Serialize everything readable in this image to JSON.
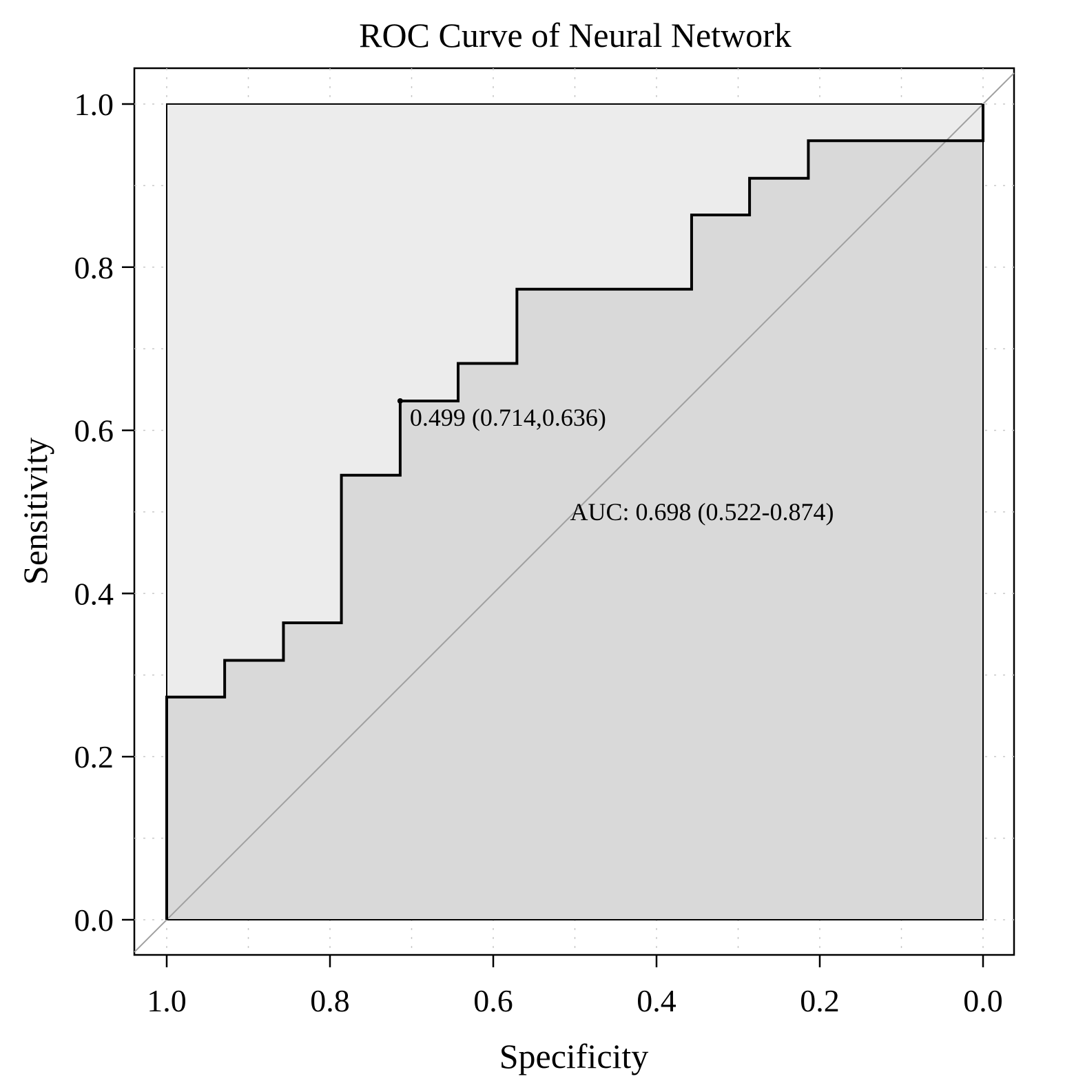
{
  "chart_data": {
    "type": "line",
    "title": "ROC Curve of Neural Network",
    "xlabel": "Specificity",
    "ylabel": "Sensitivity",
    "xlim": [
      1.0,
      0.0
    ],
    "ylim": [
      0.0,
      1.0
    ],
    "x_ticks": [
      "1.0",
      "0.8",
      "0.6",
      "0.4",
      "0.2",
      "0.0"
    ],
    "y_ticks": [
      "0.0",
      "0.2",
      "0.4",
      "0.6",
      "0.8",
      "1.0"
    ],
    "grid": true,
    "series": [
      {
        "name": "ROC",
        "specificity": [
          1.0,
          1.0,
          0.929,
          0.929,
          0.857,
          0.857,
          0.786,
          0.786,
          0.714,
          0.714,
          0.643,
          0.643,
          0.571,
          0.571,
          0.357,
          0.357,
          0.286,
          0.286,
          0.214,
          0.214,
          0.0,
          0.0
        ],
        "sensitivity": [
          0.0,
          0.273,
          0.273,
          0.318,
          0.318,
          0.364,
          0.364,
          0.545,
          0.545,
          0.636,
          0.636,
          0.682,
          0.682,
          0.773,
          0.773,
          0.864,
          0.864,
          0.909,
          0.909,
          0.955,
          0.955,
          1.0
        ]
      }
    ],
    "best_threshold": {
      "threshold": 0.499,
      "specificity": 0.714,
      "sensitivity": 0.636,
      "label": "0.499 (0.714,0.636)"
    },
    "auc_label": "AUC: 0.698 (0.522-0.874)",
    "colors": {
      "auc_fill": "#d9d9d9",
      "max_fill": "#ececec",
      "curve": "#000000",
      "diagonal": "#a0a0a0",
      "grid": "#c8c8c8"
    }
  }
}
